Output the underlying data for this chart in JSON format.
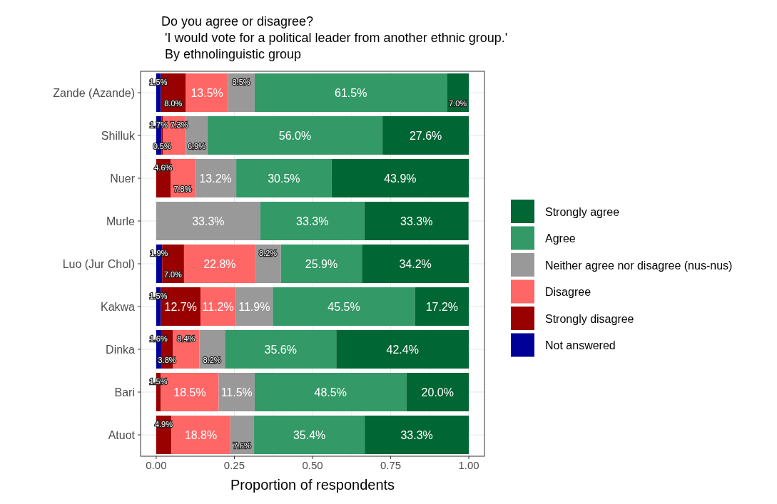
{
  "chart_data": {
    "type": "bar",
    "orientation": "horizontal",
    "stacked": true,
    "title": "Do you agree or disagree?",
    "subtitle": " 'I would vote for a political leader from another ethnic group.'\n By ethnolinguistic group",
    "xlabel": "Proportion of respondents",
    "categories": [
      "Zande (Azande)",
      "Shilluk",
      "Nuer",
      "Murle",
      "Luo (Jur Chol)",
      "Kakwa",
      "Dinka",
      "Bari",
      "Atuot"
    ],
    "xlim": [
      -0.05,
      1.05
    ],
    "xticks": [
      {
        "value": 0,
        "label": "0.00"
      },
      {
        "value": 0.25,
        "label": "0.25"
      },
      {
        "value": 0.5,
        "label": "0.50"
      },
      {
        "value": 0.75,
        "label": "0.75"
      },
      {
        "value": 1,
        "label": "1.00"
      }
    ],
    "grid": true,
    "legend": "right",
    "series": [
      {
        "name": "Not answered",
        "color": "#000099",
        "values": [
          0.015,
          0.017,
          null,
          null,
          0.019,
          0.015,
          0.016,
          null,
          null
        ],
        "value_labels": [
          "1.5%",
          "1.7%",
          null,
          null,
          "1.9%",
          "1.5%",
          "1.6%",
          null,
          null
        ]
      },
      {
        "name": "Strongly disagree",
        "color": "#990000",
        "values": [
          0.08,
          0.005,
          0.046,
          null,
          0.07,
          0.127,
          0.038,
          0.015,
          0.049
        ],
        "value_labels": [
          "8.0%",
          "0.5%",
          "4.6%",
          null,
          "7.0%",
          "12.7%",
          "3.8%",
          "1.5%",
          "4.9%"
        ]
      },
      {
        "name": "Disagree",
        "color": "#ff6666",
        "values": [
          0.135,
          0.073,
          0.078,
          null,
          0.228,
          0.112,
          0.084,
          0.185,
          0.188
        ],
        "value_labels": [
          "13.5%",
          "7.3%",
          "7.8%",
          null,
          "22.8%",
          "11.2%",
          "8.4%",
          "18.5%",
          "18.8%"
        ]
      },
      {
        "name": "Neither agree nor disagree (nus-nus)",
        "color": "#999999",
        "values": [
          0.085,
          0.069,
          0.132,
          0.333,
          0.082,
          0.119,
          0.082,
          0.115,
          0.076
        ],
        "value_labels": [
          "8.5%",
          "6.9%",
          "13.2%",
          "33.3%",
          "8.2%",
          "11.9%",
          "8.2%",
          "11.5%",
          "7.6%"
        ]
      },
      {
        "name": "Agree",
        "color": "#339966",
        "values": [
          0.615,
          0.56,
          0.305,
          0.333,
          0.259,
          0.455,
          0.356,
          0.485,
          0.354
        ],
        "value_labels": [
          "61.5%",
          "56.0%",
          "30.5%",
          "33.3%",
          "25.9%",
          "45.5%",
          "35.6%",
          "48.5%",
          "35.4%"
        ]
      },
      {
        "name": "Strongly agree",
        "color": "#006633",
        "values": [
          0.07,
          0.276,
          0.439,
          0.333,
          0.342,
          0.172,
          0.424,
          0.2,
          0.333
        ],
        "value_labels": [
          "7.0%",
          "27.6%",
          "43.9%",
          "33.3%",
          "34.2%",
          "17.2%",
          "42.4%",
          "20.0%",
          "33.3%"
        ]
      }
    ]
  }
}
